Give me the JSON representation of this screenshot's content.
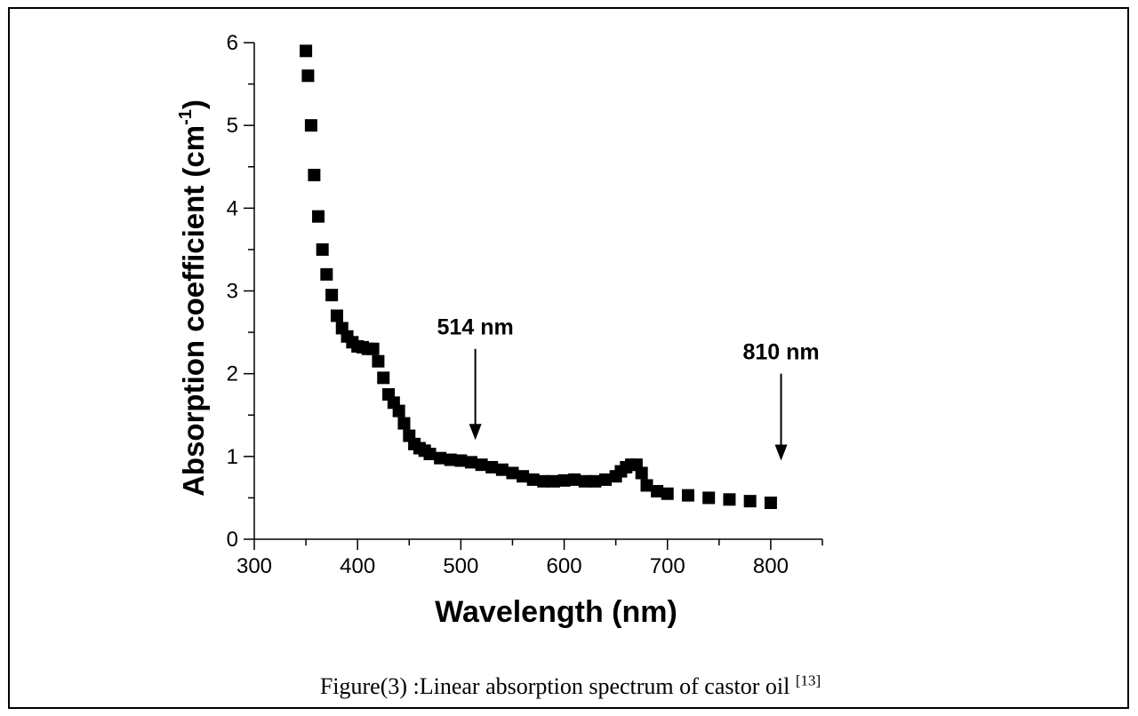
{
  "chart_data": {
    "type": "scatter",
    "xlabel": "Wavelength (nm)",
    "ylabel": "Absorption coefficient (cm",
    "ylabel_sup": "-1",
    "ylabel_close": ")",
    "xlim": [
      300,
      850
    ],
    "ylim": [
      0,
      6
    ],
    "xticks": [
      300,
      400,
      500,
      600,
      700,
      800
    ],
    "yticks": [
      0,
      1,
      2,
      3,
      4,
      5,
      6
    ],
    "grid": false,
    "legend": "none",
    "marker_color": "#000000",
    "series": [
      {
        "x": [
          350,
          352,
          355,
          358,
          362,
          366,
          370,
          375,
          380,
          385,
          390,
          395,
          400,
          405,
          410,
          415,
          420,
          425,
          430,
          435,
          440,
          445,
          450,
          455,
          460,
          465,
          470,
          480,
          490,
          500,
          510,
          520,
          530,
          540,
          550,
          560,
          570,
          580,
          590,
          600,
          610,
          620,
          630,
          640,
          650,
          655,
          660,
          665,
          670,
          675,
          680,
          690,
          700,
          720,
          740,
          760,
          780,
          800
        ],
        "y": [
          5.9,
          5.6,
          5.0,
          4.4,
          3.9,
          3.5,
          3.2,
          2.95,
          2.7,
          2.55,
          2.45,
          2.38,
          2.33,
          2.32,
          2.3,
          2.3,
          2.15,
          1.95,
          1.75,
          1.65,
          1.55,
          1.4,
          1.25,
          1.15,
          1.1,
          1.07,
          1.03,
          0.98,
          0.96,
          0.95,
          0.93,
          0.9,
          0.87,
          0.84,
          0.8,
          0.76,
          0.72,
          0.7,
          0.7,
          0.71,
          0.72,
          0.7,
          0.7,
          0.72,
          0.76,
          0.82,
          0.87,
          0.9,
          0.9,
          0.8,
          0.65,
          0.58,
          0.55,
          0.53,
          0.5,
          0.48,
          0.46,
          0.44
        ]
      }
    ],
    "annotations": [
      {
        "text": "514 nm",
        "x": 514,
        "arrow_from": 2.3,
        "arrow_to": 1.2
      },
      {
        "text": "810 nm",
        "x": 810,
        "arrow_from": 2.0,
        "arrow_to": 0.95
      }
    ]
  },
  "caption": {
    "text": "Figure(3) :Linear absorption spectrum of castor oil ",
    "ref": "[13]"
  }
}
